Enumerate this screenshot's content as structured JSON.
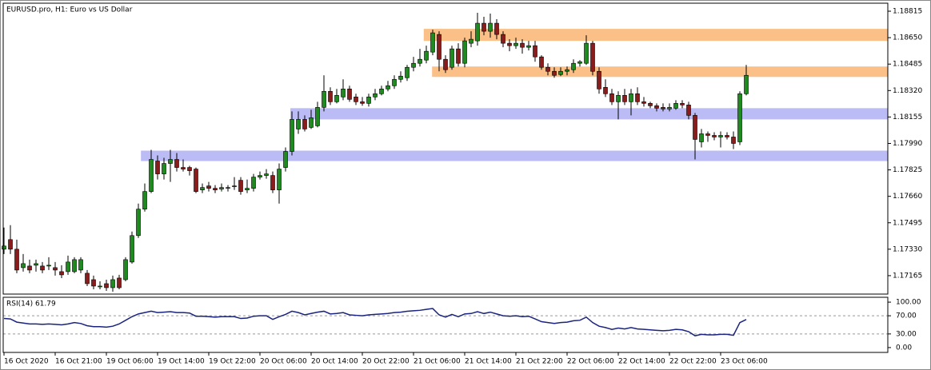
{
  "chart_data": [
    {
      "type": "candlestick",
      "title": "EURUSD.pro, H1:  Euro vs US Dollar",
      "categories": [
        "16 Oct 2020",
        null,
        null,
        null,
        null,
        null,
        null,
        null,
        "16 Oct 21:00",
        null,
        null,
        null,
        null,
        null,
        null,
        null,
        "19 Oct 06:00",
        null,
        null,
        null,
        null,
        null,
        null,
        null,
        "19 Oct 14:00",
        null,
        null,
        null,
        null,
        null,
        null,
        null,
        "19 Oct 22:00",
        null,
        null,
        null,
        null,
        null,
        null,
        null,
        "20 Oct 06:00",
        null,
        null,
        null,
        null,
        null,
        null,
        null,
        "20 Oct 14:00",
        null,
        null,
        null,
        null,
        null,
        null,
        null,
        "20 Oct 22:00",
        null,
        null,
        null,
        null,
        null,
        null,
        null,
        "21 Oct 06:00",
        null,
        null,
        null,
        null,
        null,
        null,
        null,
        "21 Oct 14:00",
        null,
        null,
        null,
        null,
        null,
        null,
        null,
        "21 Oct 22:00",
        null,
        null,
        null,
        null,
        null,
        null,
        null,
        "22 Oct 06:00",
        null,
        null,
        null,
        null,
        null,
        null,
        null,
        "22 Oct 14:00",
        null,
        null,
        null,
        null,
        null,
        null,
        null,
        "22 Oct 22:00",
        null,
        null,
        null,
        null,
        null,
        null,
        null,
        "23 Oct 06:00",
        null,
        null,
        null,
        null
      ],
      "open": [
        1.1733,
        1.1739,
        1.1733,
        1.17215,
        1.17225,
        1.1723,
        1.17225,
        1.17225,
        1.17215,
        1.1719,
        1.1719,
        1.1719,
        1.172,
        1.1718,
        1.1714,
        1.171,
        1.17115,
        1.1709,
        1.1715,
        1.1714,
        1.1725,
        1.17415,
        1.1758,
        1.1769,
        1.1788,
        1.178,
        1.17865,
        1.1789,
        1.1784,
        1.1784,
        1.1783,
        1.177,
        1.17725,
        1.1771,
        1.17705,
        1.1771,
        1.1772,
        1.1776,
        1.177,
        1.1771,
        1.1778,
        1.1779,
        1.1779,
        1.177,
        1.1784,
        1.1794,
        1.1808,
        1.1814,
        1.1809,
        1.181,
        1.18215,
        1.18315,
        1.1825,
        1.1828,
        1.1833,
        1.1828,
        1.1825,
        1.1824,
        1.1828,
        1.183,
        1.1833,
        1.1835,
        1.1839,
        1.184,
        1.18465,
        1.1849,
        1.1851,
        1.1856,
        1.1867,
        1.18515,
        1.18465,
        1.1858,
        1.1849,
        1.18615,
        1.1863,
        1.1874,
        1.1869,
        1.1874,
        1.1867,
        1.18615,
        1.186,
        1.18615,
        1.1859,
        1.186,
        1.1853,
        1.18465,
        1.1844,
        1.1842,
        1.1844,
        1.1845,
        1.1849,
        1.1849,
        1.18615,
        1.1844,
        1.1834,
        1.183,
        1.1825,
        1.1829,
        1.1825,
        1.183,
        1.1825,
        1.1824,
        1.18225,
        1.18215,
        1.18205,
        1.1821,
        1.1824,
        1.1823,
        1.18165,
        1.18,
        1.1805,
        1.1804,
        1.1803,
        1.1804,
        1.1803,
        1.18,
        1.183
      ],
      "high": [
        1.17465,
        1.1748,
        1.1739,
        1.173,
        1.17265,
        1.17265,
        1.1725,
        1.1728,
        1.1725,
        1.1723,
        1.1729,
        1.1728,
        1.1728,
        1.172,
        1.17165,
        1.1713,
        1.1714,
        1.17165,
        1.1717,
        1.1728,
        1.1744,
        1.17615,
        1.1774,
        1.1795,
        1.17915,
        1.179,
        1.1795,
        1.1793,
        1.1789,
        1.1785,
        1.1784,
        1.1774,
        1.1775,
        1.1773,
        1.1774,
        1.1773,
        1.1778,
        1.1778,
        1.17765,
        1.178,
        1.17815,
        1.1783,
        1.17815,
        1.17865,
        1.17965,
        1.1819,
        1.1819,
        1.18165,
        1.182,
        1.1825,
        1.18415,
        1.1834,
        1.1833,
        1.1839,
        1.1835,
        1.183,
        1.1828,
        1.183,
        1.1833,
        1.1835,
        1.1838,
        1.18415,
        1.1844,
        1.1848,
        1.1853,
        1.1858,
        1.186,
        1.187,
        1.1869,
        1.1854,
        1.186,
        1.18615,
        1.1865,
        1.1869,
        1.18805,
        1.1878,
        1.188,
        1.18765,
        1.1869,
        1.1864,
        1.1865,
        1.1864,
        1.1863,
        1.1863,
        1.1854,
        1.1849,
        1.18465,
        1.18465,
        1.1847,
        1.18515,
        1.1851,
        1.18665,
        1.1863,
        1.18465,
        1.1839,
        1.1833,
        1.18315,
        1.1833,
        1.1833,
        1.1834,
        1.1828,
        1.1825,
        1.1824,
        1.1824,
        1.1824,
        1.1826,
        1.1826,
        1.1825,
        1.1818,
        1.1808,
        1.18065,
        1.1806,
        1.18065,
        1.1806,
        1.18065,
        1.18315,
        1.1848
      ],
      "low": [
        1.173,
        1.173,
        1.1718,
        1.1719,
        1.1718,
        1.1719,
        1.1718,
        1.172,
        1.17165,
        1.1715,
        1.1717,
        1.1718,
        1.1718,
        1.171,
        1.1708,
        1.1708,
        1.1707,
        1.17065,
        1.1708,
        1.1713,
        1.1724,
        1.174,
        1.17565,
        1.1768,
        1.17765,
        1.17765,
        1.1775,
        1.17815,
        1.17815,
        1.1779,
        1.1768,
        1.1768,
        1.1769,
        1.1768,
        1.1769,
        1.1769,
        1.177,
        1.1767,
        1.1768,
        1.1769,
        1.17765,
        1.1777,
        1.1768,
        1.17615,
        1.17815,
        1.17915,
        1.1805,
        1.18065,
        1.1808,
        1.1809,
        1.1819,
        1.1823,
        1.1824,
        1.1826,
        1.1825,
        1.1823,
        1.18225,
        1.1822,
        1.1826,
        1.1829,
        1.18315,
        1.1833,
        1.1837,
        1.1838,
        1.1844,
        1.1847,
        1.1849,
        1.1854,
        1.1844,
        1.1843,
        1.1845,
        1.1847,
        1.18465,
        1.1859,
        1.186,
        1.18665,
        1.1865,
        1.1864,
        1.1859,
        1.18565,
        1.1858,
        1.1855,
        1.1857,
        1.185,
        1.1845,
        1.18415,
        1.184,
        1.1841,
        1.18415,
        1.1843,
        1.1847,
        1.1848,
        1.18415,
        1.183,
        1.1828,
        1.1823,
        1.1814,
        1.1823,
        1.18165,
        1.1823,
        1.1822,
        1.1821,
        1.1819,
        1.1819,
        1.1819,
        1.182,
        1.1821,
        1.1814,
        1.1789,
        1.17965,
        1.18,
        1.1801,
        1.17965,
        1.18015,
        1.17955,
        1.1798,
        1.1829
      ],
      "close": [
        1.1735,
        1.1733,
        1.172,
        1.1724,
        1.172,
        1.1724,
        1.172,
        1.1723,
        1.172,
        1.1717,
        1.1725,
        1.17265,
        1.17265,
        1.17115,
        1.171,
        1.171,
        1.1709,
        1.1714,
        1.1709,
        1.17265,
        1.17415,
        1.1758,
        1.1769,
        1.1789,
        1.178,
        1.17865,
        1.1789,
        1.1784,
        1.1783,
        1.1782,
        1.1769,
        1.17715,
        1.1771,
        1.177,
        1.17715,
        1.17715,
        1.17725,
        1.1769,
        1.1771,
        1.1778,
        1.1779,
        1.178,
        1.177,
        1.1783,
        1.1794,
        1.1814,
        1.1814,
        1.1808,
        1.1815,
        1.18215,
        1.18315,
        1.1825,
        1.1829,
        1.1833,
        1.18265,
        1.1825,
        1.1824,
        1.1828,
        1.183,
        1.1833,
        1.1835,
        1.1839,
        1.1841,
        1.18465,
        1.1849,
        1.18515,
        1.18565,
        1.1868,
        1.18515,
        1.1845,
        1.1858,
        1.1849,
        1.1863,
        1.1864,
        1.1874,
        1.1869,
        1.1874,
        1.1867,
        1.18615,
        1.186,
        1.18615,
        1.1859,
        1.186,
        1.1853,
        1.18465,
        1.1844,
        1.18415,
        1.1844,
        1.1845,
        1.1849,
        1.185,
        1.18615,
        1.1844,
        1.1833,
        1.183,
        1.1825,
        1.1829,
        1.1825,
        1.183,
        1.1825,
        1.1824,
        1.18225,
        1.1821,
        1.18205,
        1.18215,
        1.1824,
        1.1823,
        1.18165,
        1.18015,
        1.1805,
        1.1804,
        1.1803,
        1.1804,
        1.1803,
        1.1799,
        1.183,
        1.18415
      ],
      "up_color": "#1f8a1f",
      "down_color": "#8b1c1c",
      "ylim": [
        1.1705,
        1.18865
      ],
      "yticks": [
        1.18815,
        {
          "value": 1.1865,
          "label": "1.18650"
        },
        1.18485,
        {
          "value": 1.1832,
          "label": "1.18320"
        },
        1.18155,
        {
          "value": 1.1799,
          "label": "1.17990"
        },
        1.17825,
        {
          "value": 1.1766,
          "label": "1.17660"
        },
        1.17495,
        {
          "value": 1.1733,
          "label": "1.17330"
        },
        1.17165
      ],
      "zones": [
        {
          "from": 65.6,
          "top": 1.18705,
          "bottom": 1.1863,
          "color": "#f9b97b"
        },
        {
          "from": 66.9,
          "top": 1.1847,
          "bottom": 1.18405,
          "color": "#f9b97b"
        },
        {
          "from": 44.75,
          "top": 1.1821,
          "bottom": 1.1814,
          "color": "#b4b4f4"
        },
        {
          "from": 21.4,
          "top": 1.17945,
          "bottom": 1.1788,
          "color": "#b4b4f4"
        }
      ]
    },
    {
      "type": "line",
      "title": "RSI(14) 61.79",
      "color": "#1a237e",
      "values": [
        64,
        63,
        56,
        54,
        52,
        52,
        51,
        52,
        51,
        50,
        52,
        55,
        53,
        48,
        46,
        46,
        45,
        47,
        52,
        60,
        68,
        74,
        77,
        80,
        77,
        78,
        79,
        77,
        77,
        76,
        69,
        69,
        68,
        67,
        68,
        68,
        68,
        64,
        65,
        69,
        70,
        70,
        62,
        68,
        73,
        80,
        77,
        72,
        75,
        78,
        80,
        74,
        75,
        77,
        72,
        71,
        70,
        72,
        73,
        74,
        75,
        77,
        78,
        80,
        81,
        82,
        84,
        86,
        72,
        67,
        73,
        68,
        74,
        75,
        79,
        75,
        78,
        74,
        70,
        69,
        70,
        68,
        69,
        63,
        57,
        55,
        53,
        55,
        56,
        59,
        60,
        67,
        55,
        47,
        44,
        40,
        43,
        41,
        44,
        41,
        40,
        39,
        38,
        37,
        38,
        40,
        39,
        35,
        26,
        29,
        28,
        28,
        29,
        29,
        27,
        55,
        61.79
      ],
      "ylim": [
        -10.7,
        110.7
      ],
      "yticks": [
        {
          "value": 100,
          "label": "100.00"
        },
        {
          "value": 70,
          "label": "70.00"
        },
        {
          "value": 30,
          "label": "30.00"
        },
        {
          "value": 0,
          "label": "0.00"
        }
      ],
      "dashed_levels": [
        {
          "value": 70,
          "label": "70.00"
        },
        {
          "value": 30,
          "label": "30.00"
        }
      ]
    }
  ]
}
